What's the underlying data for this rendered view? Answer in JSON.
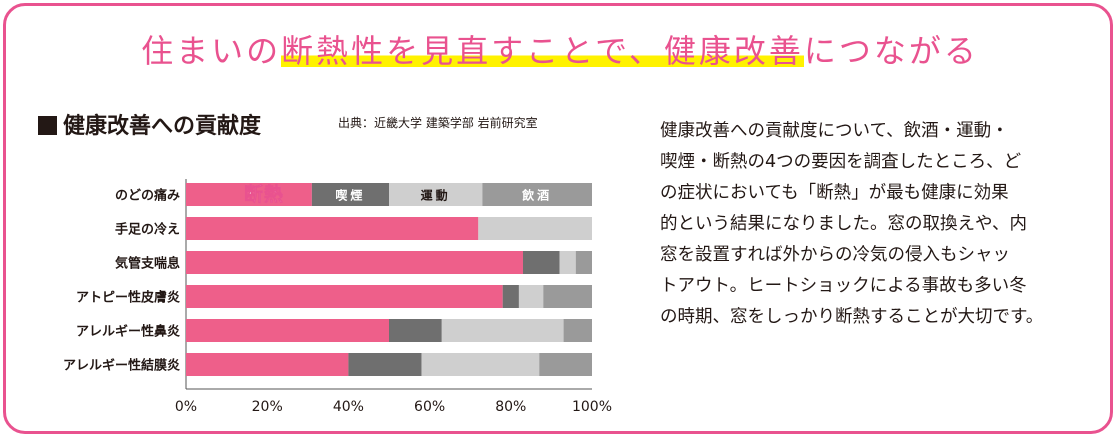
{
  "headline": {
    "before": "住まいの",
    "highlight": "断熱性を見直すことで、健康改善",
    "after": "につながる"
  },
  "chart_title": "健康改善への貢献度",
  "source": "出典：近畿大学 建築学部 岩前研究室",
  "colors": {
    "accent": "#e9528f",
    "insulation": "#ee5f8a",
    "smoking": "#6f6f6f",
    "exercise": "#cfcfcf",
    "drinking": "#9a9a9a"
  },
  "chart_data": {
    "type": "bar",
    "orientation": "horizontal",
    "stacked": true,
    "categories": [
      "のどの痛み",
      "手足の冷え",
      "気管支喘息",
      "アトピー性皮膚炎",
      "アレルギー性鼻炎",
      "アレルギー性結膜炎"
    ],
    "series": [
      {
        "name": "断熱",
        "values": [
          31,
          72,
          83,
          78,
          50,
          40
        ]
      },
      {
        "name": "喫煙",
        "values": [
          19,
          0,
          9,
          4,
          13,
          18
        ]
      },
      {
        "name": "運動",
        "values": [
          23,
          28,
          4,
          6,
          30,
          29
        ]
      },
      {
        "name": "飲酒",
        "values": [
          27,
          0,
          4,
          12,
          7,
          13
        ]
      }
    ],
    "header_labels": [
      "断熱",
      "喫煙",
      "運動",
      "飲酒"
    ],
    "xlim": [
      0,
      100
    ],
    "x_ticks": [
      "0%",
      "20%",
      "40%",
      "60%",
      "80%",
      "100%"
    ],
    "title": "健康改善への貢献度",
    "xlabel": "",
    "ylabel": ""
  },
  "description": [
    "健康改善への貢献度について、飲酒・運動・",
    "喫煙・断熱の4つの要因を調査したところ、ど",
    "の症状においても「断熱」が最も健康に効果",
    "的という結果になりました。窓の取換えや、内",
    "窓を設置すれば外からの冷気の侵入もシャッ",
    "トアウト。ヒートショックによる事故も多い冬",
    "の時期、窓をしっかり断熱することが大切です。"
  ]
}
